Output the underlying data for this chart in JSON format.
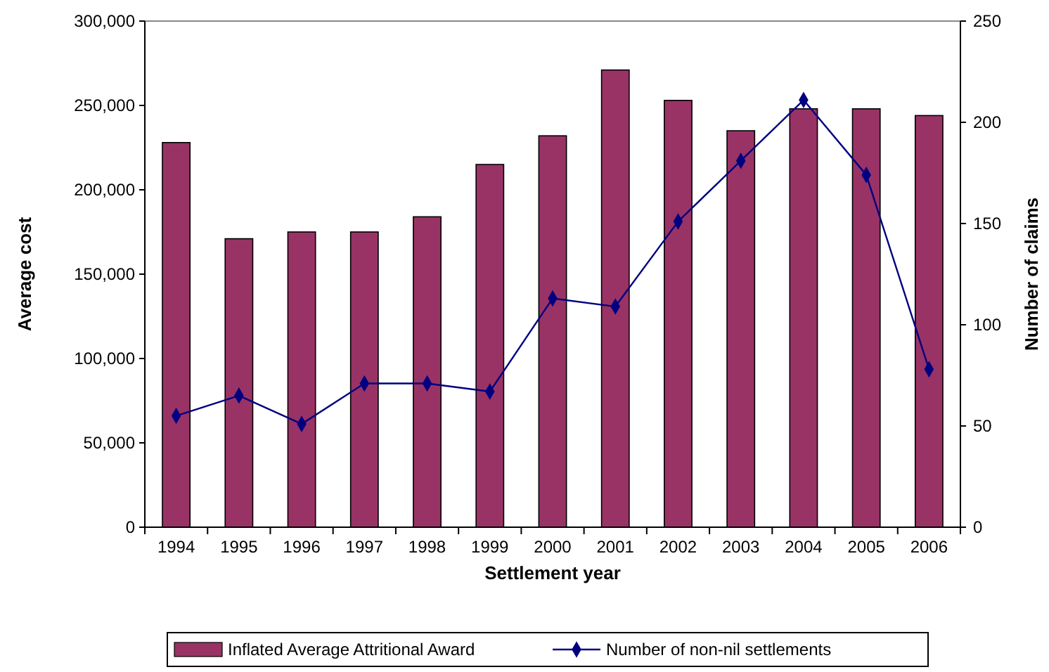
{
  "chart_data": {
    "type": "bar",
    "xlabel": "Settlement year",
    "ylabel": "Average cost",
    "y2label": "Number of claims",
    "categories": [
      "1994",
      "1995",
      "1996",
      "1997",
      "1998",
      "1999",
      "2000",
      "2001",
      "2002",
      "2003",
      "2004",
      "2005",
      "2006"
    ],
    "series": [
      {
        "name": "Inflated Average Attritional Award",
        "color": "#993366",
        "values": [
          228000,
          171000,
          175000,
          175000,
          184000,
          215000,
          232000,
          271000,
          253000,
          235000,
          248000,
          248000,
          244000
        ]
      },
      {
        "name": "Number of non-nil settlements",
        "type": "line",
        "axis": "y2",
        "color": "#000080",
        "marker": "diamond",
        "values": [
          55,
          65,
          51,
          71,
          71,
          67,
          113,
          109,
          151,
          181,
          211,
          174,
          78
        ]
      }
    ],
    "ylim": [
      0,
      300000
    ],
    "yticks": [
      {
        "value": 0,
        "label": "0"
      },
      {
        "value": 50000,
        "label": "50,000"
      },
      {
        "value": 100000,
        "label": "100,000"
      },
      {
        "value": 150000,
        "label": "150,000"
      },
      {
        "value": 200000,
        "label": "200,000"
      },
      {
        "value": 250000,
        "label": "250,000"
      },
      {
        "value": 300000,
        "label": "300,000"
      }
    ],
    "y2lim": [
      0,
      250
    ],
    "y2ticks": [
      0,
      50,
      100,
      150,
      200,
      250
    ],
    "grid": false,
    "legend": "bottom"
  }
}
